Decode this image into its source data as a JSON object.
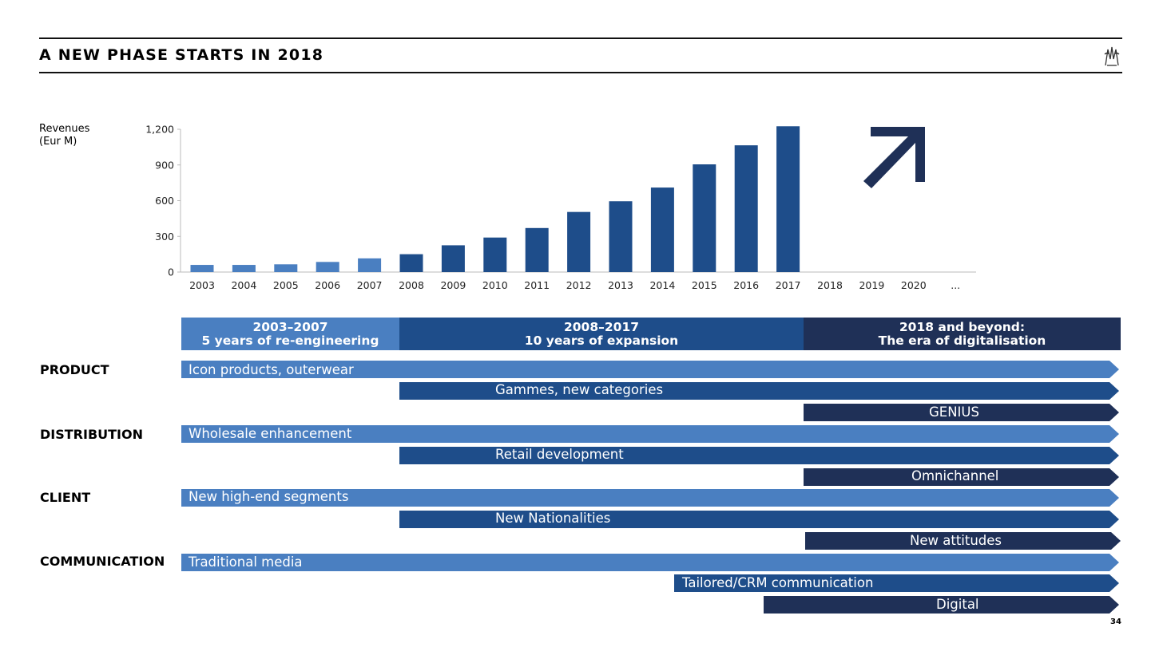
{
  "title": "A NEW PHASE STARTS IN 2018",
  "page_number": "34",
  "logo_icon": "brand-emblem-icon",
  "colors": {
    "light_blue": "#4a7fc1",
    "mid_blue": "#1e4d8a",
    "dark_navy": "#1f3057"
  },
  "chart_data": {
    "type": "bar",
    "ylabel": "Revenues\n(Eur M)",
    "ylim": [
      0,
      1200
    ],
    "yticks": [
      "0",
      "300",
      "600",
      "900",
      "1,200"
    ],
    "categories": [
      "2003",
      "2004",
      "2005",
      "2006",
      "2007",
      "2008",
      "2009",
      "2010",
      "2011",
      "2012",
      "2013",
      "2014",
      "2015",
      "2016",
      "2017",
      "2018",
      "2019",
      "2020",
      "..."
    ],
    "values": [
      60,
      60,
      65,
      85,
      115,
      150,
      225,
      290,
      370,
      505,
      595,
      710,
      905,
      1065,
      1225,
      null,
      null,
      null,
      null
    ],
    "bar_colors": [
      "light_blue",
      "light_blue",
      "light_blue",
      "light_blue",
      "light_blue",
      "mid_blue",
      "mid_blue",
      "mid_blue",
      "mid_blue",
      "mid_blue",
      "mid_blue",
      "mid_blue",
      "mid_blue",
      "mid_blue",
      "mid_blue",
      null,
      null,
      null,
      null
    ],
    "annotation": "up-right-arrow-icon",
    "grid": false
  },
  "phases": [
    {
      "period": "2003–2007",
      "label": "5 years of re-engineering",
      "color": "light_blue"
    },
    {
      "period": "2008–2017",
      "label": "10 years of expansion",
      "color": "mid_blue"
    },
    {
      "period": "2018 and beyond:",
      "label": "The era of digitalisation",
      "color": "dark_navy"
    }
  ],
  "categories": [
    {
      "name": "PRODUCT",
      "arrows": [
        {
          "label": "Icon products, outerwear",
          "color": "light_blue"
        },
        {
          "label": "Gammes, new categories",
          "color": "mid_blue"
        },
        {
          "label": "GENIUS",
          "color": "dark_navy"
        }
      ]
    },
    {
      "name": "DISTRIBUTION",
      "arrows": [
        {
          "label": "Wholesale enhancement",
          "color": "light_blue"
        },
        {
          "label": "Retail development",
          "color": "mid_blue"
        },
        {
          "label": "Omnichannel",
          "color": "dark_navy"
        }
      ]
    },
    {
      "name": "CLIENT",
      "arrows": [
        {
          "label": "New high-end segments",
          "color": "light_blue"
        },
        {
          "label": "New Nationalities",
          "color": "mid_blue"
        },
        {
          "label": "New attitudes",
          "color": "dark_navy"
        }
      ]
    },
    {
      "name": "COMMUNICATION",
      "arrows": [
        {
          "label": "Traditional media",
          "color": "light_blue"
        },
        {
          "label": "Tailored/CRM communication",
          "color": "mid_blue"
        },
        {
          "label": "Digital",
          "color": "dark_navy"
        }
      ]
    }
  ]
}
